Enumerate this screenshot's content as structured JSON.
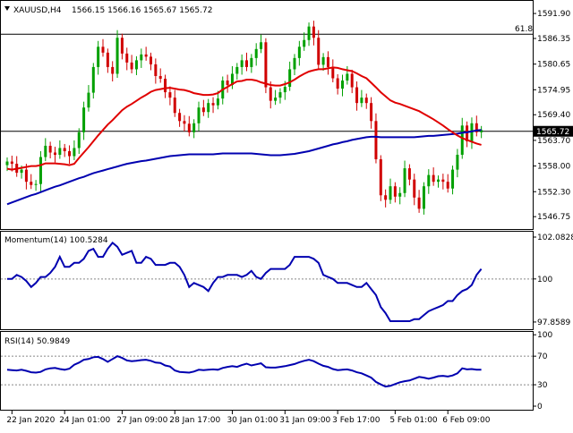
{
  "header": {
    "symbol": "XAUUSD,H4",
    "ohlc": "1566.15 1566.16 1565.67 1565.72"
  },
  "colors": {
    "bull": "#00a000",
    "bear": "#d00000",
    "ma_fast": "#e00000",
    "ma_slow": "#0000b0",
    "indicator": "#0000b0",
    "grid": "#000000"
  },
  "chart_data": [
    {
      "type": "candlestick",
      "panel": "price",
      "ylim": [
        1544.0,
        1594.5
      ],
      "y_ticks": [
        "1591.90",
        "1586.35",
        "1580.65",
        "1574.95",
        "1569.40",
        "1563.70",
        "1558.00",
        "1552.30",
        "1546.75"
      ],
      "current_price": 1565.72,
      "current_price_label": "1565.72",
      "level_line": {
        "label": "61.8",
        "value": 1587.3
      },
      "x_labels": [
        "22 Jan 2020",
        "24 Jan 01:00",
        "27 Jan 09:00",
        "28 Jan 17:00",
        "30 Jan 01:00",
        "31 Jan 09:00",
        "3 Feb 17:00",
        "5 Feb 01:00",
        "6 Feb 09:00"
      ],
      "closes": [
        1559.0,
        1558.5,
        1556.5,
        1557.2,
        1554.5,
        1553.8,
        1554.0,
        1560.0,
        1562.5,
        1561.0,
        1560.5,
        1562.0,
        1561.3,
        1560.2,
        1562.0,
        1565.5,
        1571.0,
        1574.3,
        1580.0,
        1584.5,
        1583.2,
        1580.0,
        1578.5,
        1586.5,
        1583.0,
        1581.0,
        1579.5,
        1581.5,
        1582.8,
        1582.3,
        1580.6,
        1578.0,
        1577.4,
        1574.4,
        1573.2,
        1569.8,
        1568.0,
        1567.4,
        1565.5,
        1567.5,
        1571.0,
        1570.0,
        1572.0,
        1571.5,
        1573.0,
        1577.0,
        1576.0,
        1578.5,
        1580.0,
        1581.5,
        1580.0,
        1582.0,
        1584.0,
        1585.5,
        1575.5,
        1572.5,
        1573.2,
        1574.4,
        1575.6,
        1579.5,
        1582.0,
        1584.5,
        1586.0,
        1589.0,
        1586.5,
        1580.5,
        1582.2,
        1580.0,
        1577.5,
        1575.2,
        1577.0,
        1578.5,
        1575.5,
        1572.0,
        1573.2,
        1572.0,
        1568.0,
        1559.5,
        1551.5,
        1550.5,
        1553.5,
        1551.2,
        1552.0,
        1557.5,
        1555.0,
        1551.0,
        1548.5,
        1553.5,
        1556.0,
        1554.5,
        1555.0,
        1554.5,
        1553.0,
        1557.2,
        1560.5,
        1567.0,
        1563.5,
        1567.5,
        1565.5,
        1566.0
      ],
      "series": [
        {
          "name": "MA fast",
          "values": [
            1557.4,
            1557.2,
            1557.4,
            1557.6,
            1557.8,
            1558.0,
            1558.0,
            1558.2,
            1558.6,
            1558.6,
            1558.6,
            1558.5,
            1558.4,
            1558.2,
            1558.5,
            1559.8,
            1561.0,
            1562.2,
            1563.5,
            1564.8,
            1566.0,
            1567.2,
            1568.2,
            1569.3,
            1570.4,
            1571.2,
            1571.8,
            1572.5,
            1573.2,
            1573.8,
            1574.5,
            1574.9,
            1575.1,
            1575.3,
            1575.4,
            1575.2,
            1575.0,
            1574.9,
            1574.6,
            1574.2,
            1574.0,
            1573.8,
            1573.8,
            1573.9,
            1574.2,
            1575.0,
            1575.6,
            1576.2,
            1576.8,
            1576.9,
            1577.2,
            1577.2,
            1577.0,
            1576.6,
            1576.3,
            1576.0,
            1575.9,
            1575.9,
            1576.2,
            1576.6,
            1577.2,
            1577.9,
            1578.5,
            1579.0,
            1579.3,
            1579.5,
            1579.5,
            1579.7,
            1579.9,
            1579.8,
            1579.5,
            1579.3,
            1579.1,
            1578.6,
            1578.0,
            1577.5,
            1576.5,
            1575.5,
            1574.4,
            1573.5,
            1572.6,
            1572.1,
            1571.8,
            1571.4,
            1571.0,
            1570.6,
            1570.2,
            1569.6,
            1569.0,
            1568.4,
            1567.7,
            1567.0,
            1566.2,
            1565.5,
            1564.8,
            1564.2,
            1563.8,
            1563.4,
            1563.0,
            1562.7
          ]
        },
        {
          "name": "MA slow",
          "values": [
            1549.5,
            1549.9,
            1550.3,
            1550.7,
            1551.1,
            1551.5,
            1551.8,
            1552.2,
            1552.6,
            1553.0,
            1553.4,
            1553.7,
            1554.1,
            1554.5,
            1554.9,
            1555.3,
            1555.6,
            1556.0,
            1556.4,
            1556.7,
            1557.0,
            1557.3,
            1557.6,
            1557.9,
            1558.2,
            1558.5,
            1558.7,
            1558.9,
            1559.1,
            1559.2,
            1559.4,
            1559.6,
            1559.8,
            1560.0,
            1560.2,
            1560.3,
            1560.4,
            1560.5,
            1560.6,
            1560.6,
            1560.6,
            1560.6,
            1560.6,
            1560.6,
            1560.7,
            1560.8,
            1560.8,
            1560.8,
            1560.8,
            1560.8,
            1560.8,
            1560.8,
            1560.7,
            1560.6,
            1560.5,
            1560.4,
            1560.4,
            1560.4,
            1560.5,
            1560.6,
            1560.7,
            1560.9,
            1561.1,
            1561.3,
            1561.6,
            1561.9,
            1562.2,
            1562.5,
            1562.8,
            1563.0,
            1563.3,
            1563.5,
            1563.8,
            1564.0,
            1564.2,
            1564.4,
            1564.5,
            1564.5,
            1564.4,
            1564.4,
            1564.4,
            1564.4,
            1564.4,
            1564.4,
            1564.4,
            1564.4,
            1564.5,
            1564.6,
            1564.7,
            1564.7,
            1564.8,
            1564.9,
            1565.0,
            1565.1,
            1565.2,
            1565.4,
            1565.5,
            1565.7,
            1565.9,
            1566.0
          ]
        }
      ]
    },
    {
      "type": "line",
      "panel": "momentum",
      "title": "Momentum(14) 100.5284",
      "ylim": [
        97.5,
        102.35
      ],
      "y_ticks": [
        "102.0828",
        "100",
        "97.8589"
      ],
      "level": 100,
      "series": [
        {
          "name": "Momentum(14)",
          "values": [
            100.0,
            100.0,
            100.2,
            100.1,
            99.9,
            99.6,
            99.8,
            100.1,
            100.1,
            100.3,
            100.6,
            101.1,
            100.6,
            100.6,
            100.8,
            100.8,
            101.0,
            101.4,
            101.5,
            101.1,
            101.1,
            101.5,
            101.8,
            101.6,
            101.2,
            101.3,
            101.4,
            100.8,
            100.8,
            101.1,
            101.0,
            100.7,
            100.7,
            100.7,
            100.8,
            100.8,
            100.6,
            100.2,
            99.6,
            99.8,
            99.7,
            99.6,
            99.4,
            99.8,
            100.1,
            100.1,
            100.2,
            100.2,
            100.2,
            100.1,
            100.2,
            100.4,
            100.1,
            100.0,
            100.3,
            100.5,
            100.5,
            100.5,
            100.5,
            100.7,
            101.1,
            101.1,
            101.1,
            101.1,
            101.0,
            100.8,
            100.2,
            100.1,
            100.0,
            99.8,
            99.8,
            99.8,
            99.7,
            99.6,
            99.6,
            99.8,
            99.5,
            99.2,
            98.6,
            98.3,
            97.9,
            97.9,
            97.9,
            97.9,
            97.9,
            98.0,
            98.0,
            98.2,
            98.4,
            98.5,
            98.6,
            98.7,
            98.9,
            98.9,
            99.2,
            99.4,
            99.5,
            99.7,
            100.2,
            100.5
          ]
        }
      ]
    },
    {
      "type": "line",
      "panel": "rsi",
      "title": "RSI(14) 50.9849",
      "ylim": [
        -5,
        104
      ],
      "y_ticks": [
        "100",
        "70",
        "30",
        "0"
      ],
      "levels": [
        70,
        30
      ],
      "series": [
        {
          "name": "RSI(14)",
          "values": [
            51.0,
            50.5,
            50.0,
            51.0,
            49.5,
            47.5,
            47.0,
            48.0,
            51.5,
            53.0,
            53.5,
            52.0,
            51.0,
            52.5,
            58.0,
            61.0,
            65.0,
            66.0,
            68.5,
            69.0,
            66.0,
            62.0,
            66.0,
            70.0,
            67.5,
            64.0,
            63.0,
            63.5,
            64.5,
            65.0,
            63.5,
            61.0,
            60.5,
            57.0,
            55.5,
            50.0,
            48.0,
            47.5,
            47.0,
            48.5,
            51.0,
            50.5,
            51.0,
            51.5,
            51.0,
            53.5,
            55.0,
            56.0,
            55.0,
            57.5,
            59.5,
            57.0,
            58.5,
            60.0,
            54.5,
            54.0,
            54.0,
            55.0,
            56.0,
            57.5,
            59.0,
            61.5,
            63.5,
            65.0,
            63.0,
            59.5,
            56.5,
            55.0,
            52.0,
            50.5,
            51.0,
            51.5,
            50.0,
            47.5,
            46.0,
            43.0,
            40.0,
            34.0,
            30.5,
            27.5,
            28.5,
            31.0,
            33.5,
            35.0,
            36.0,
            38.5,
            41.0,
            40.0,
            38.5,
            40.0,
            42.0,
            42.5,
            41.5,
            43.0,
            46.0,
            53.0,
            51.5,
            52.0,
            51.0,
            51.0
          ]
        }
      ]
    }
  ]
}
